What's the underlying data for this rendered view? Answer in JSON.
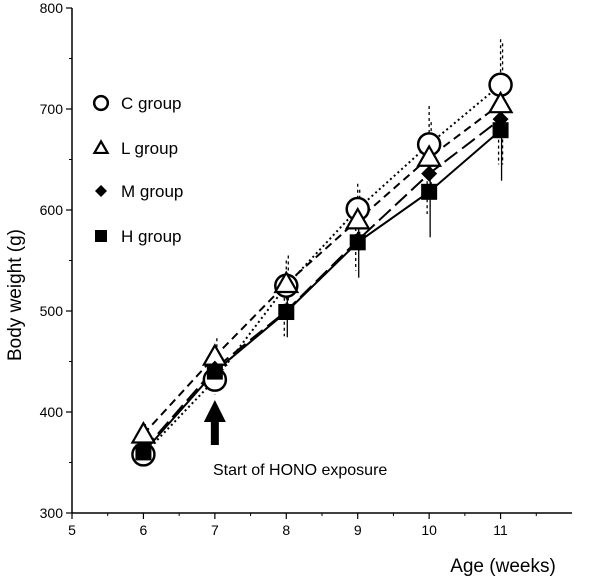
{
  "chart_data": {
    "type": "line",
    "xlabel": "Age (weeks)",
    "ylabel": "Body weight (g)",
    "xlim": [
      5,
      12
    ],
    "ylim": [
      300,
      800
    ],
    "x_ticks": [
      5,
      6,
      7,
      8,
      9,
      10,
      11
    ],
    "y_ticks": [
      300,
      400,
      500,
      600,
      700,
      800
    ],
    "legend_position": "left",
    "grid": false,
    "x": [
      6,
      7,
      8,
      9,
      10,
      11
    ],
    "series": [
      {
        "name": "C group",
        "marker": "open-circle",
        "line_style": "dotted",
        "values": [
          358,
          432,
          525,
          601,
          665,
          724
        ],
        "errors": [
          8,
          15,
          25,
          25,
          38,
          45
        ]
      },
      {
        "name": "L group",
        "marker": "open-triangle",
        "line_style": "short-dash",
        "values": [
          378,
          455,
          527,
          590,
          652,
          705
        ],
        "errors": [
          10,
          18,
          28,
          30,
          35,
          60
        ]
      },
      {
        "name": "M group",
        "marker": "filled-diamond",
        "line_style": "long-dash",
        "values": [
          362,
          443,
          500,
          570,
          636,
          690
        ],
        "errors": [
          8,
          15,
          25,
          30,
          40,
          45
        ]
      },
      {
        "name": "H group",
        "marker": "filled-square",
        "line_style": "solid",
        "values": [
          360,
          440,
          499,
          568,
          618,
          679
        ],
        "errors": [
          8,
          15,
          25,
          35,
          45,
          50
        ]
      }
    ],
    "annotation": {
      "text": "Start of HONO exposure",
      "x": 7
    }
  }
}
